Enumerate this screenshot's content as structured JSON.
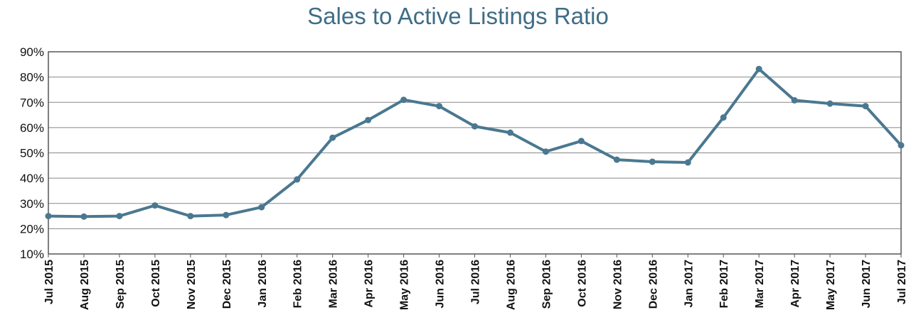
{
  "chart_data": {
    "type": "line",
    "title": "Sales to Active Listings Ratio",
    "xlabel": "",
    "ylabel": "",
    "categories": [
      "Jul 2015",
      "Aug 2015",
      "Sep 2015",
      "Oct 2015",
      "Nov 2015",
      "Dec 2015",
      "Jan 2016",
      "Feb 2016",
      "Mar 2016",
      "Apr 2016",
      "May 2016",
      "Jun 2016",
      "Jul 2016",
      "Aug 2016",
      "Sep 2016",
      "Oct 2016",
      "Nov 2016",
      "Dec 2016",
      "Jan 2017",
      "Feb 2017",
      "Mar 2017",
      "Apr 2017",
      "May 2017",
      "Jun 2017",
      "Jul 2017"
    ],
    "series": [
      {
        "values": [
          25,
          24.8,
          25,
          29.2,
          25,
          25.4,
          28.5,
          39.5,
          56,
          63,
          71,
          68.5,
          60.5,
          58,
          50.5,
          54.7,
          47.3,
          46.5,
          46.2,
          64,
          83.2,
          70.8,
          69.5,
          68.5,
          53
        ]
      }
    ],
    "ylim": [
      10,
      90
    ],
    "yticks": [
      10,
      20,
      30,
      40,
      50,
      60,
      70,
      80,
      90
    ],
    "ytick_labels": [
      "10%",
      "20%",
      "30%",
      "40%",
      "50%",
      "60%",
      "70%",
      "80%",
      "90%"
    ],
    "grid": true,
    "line_color": "#4a7890",
    "title_color": "#3f6d86"
  }
}
